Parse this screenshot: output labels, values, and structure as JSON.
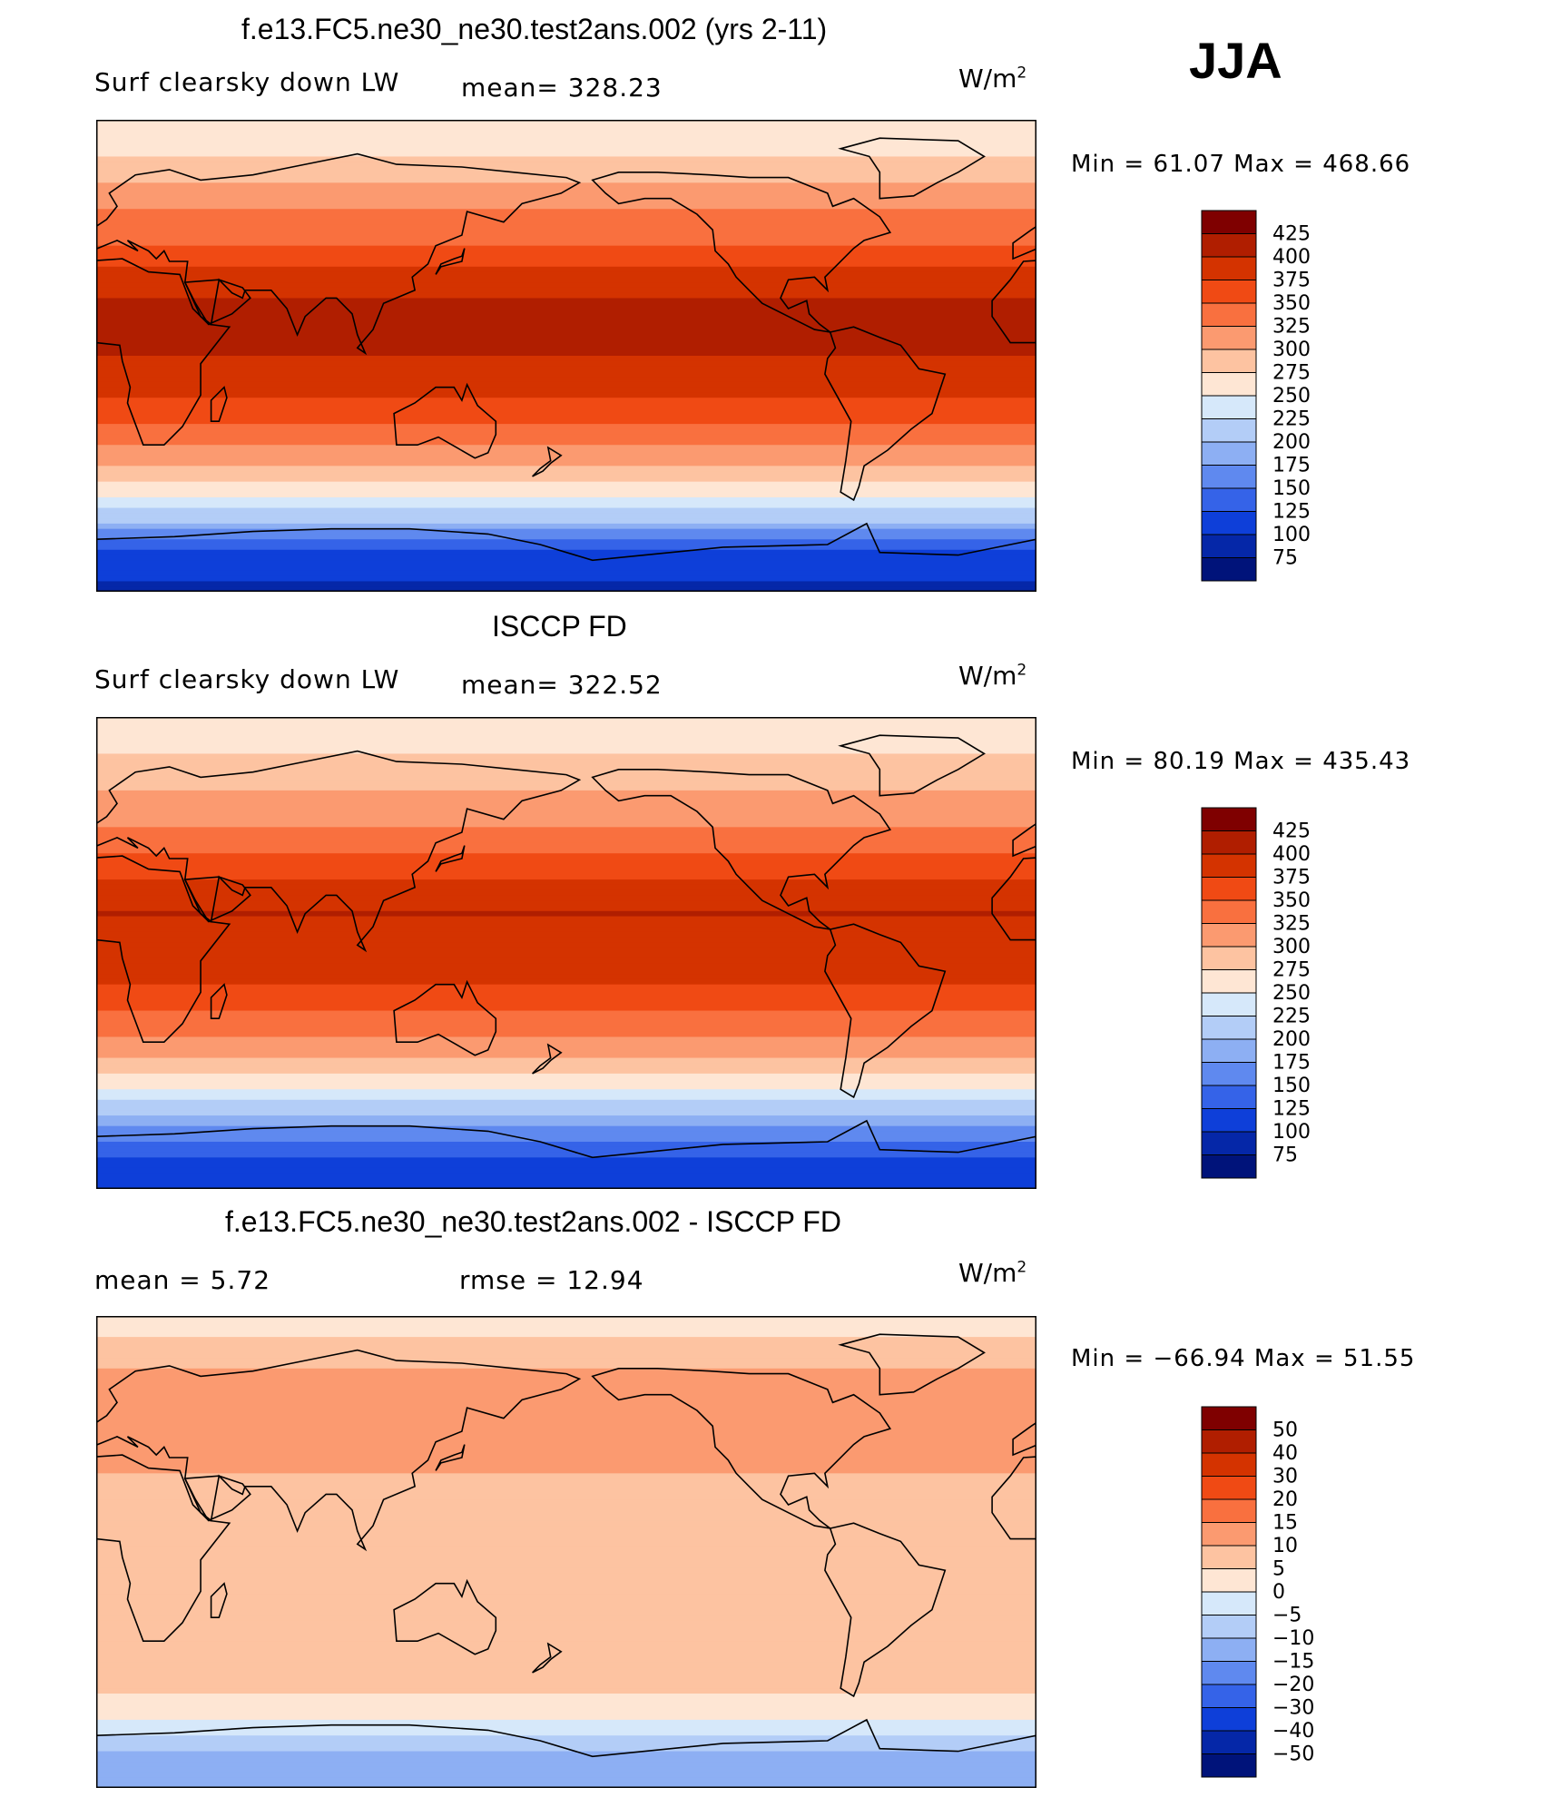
{
  "season": "JJA",
  "panels": [
    {
      "title": "f.e13.FC5.ne30_ne30.test2ans.002 (yrs 2-11)",
      "left_label": "Surf clearsky down LW",
      "center_label": "mean= 328.23",
      "units": "W/m",
      "units_sup": "2",
      "minmax": "Min =   61.07  Max  =  468.66",
      "colorbar_labels": [
        "425",
        "400",
        "375",
        "350",
        "325",
        "300",
        "275",
        "250",
        "225",
        "200",
        "175",
        "150",
        "125",
        "100",
        "75"
      ],
      "colorbar_colors": [
        "#7f0000",
        "#b01e00",
        "#d43300",
        "#f04a14",
        "#f9703f",
        "#fb9a70",
        "#fdc3a1",
        "#fee6d4",
        "#d6e8fa",
        "#b3cdf7",
        "#8daff3",
        "#5f89ef",
        "#3563e8",
        "#0e3fd9",
        "#0527a8",
        "#00137a"
      ]
    },
    {
      "title": "ISCCP FD",
      "left_label": "Surf clearsky down LW",
      "center_label": "mean= 322.52",
      "units": "W/m",
      "units_sup": "2",
      "minmax": "Min =   80.19  Max  =  435.43",
      "colorbar_labels": [
        "425",
        "400",
        "375",
        "350",
        "325",
        "300",
        "275",
        "250",
        "225",
        "200",
        "175",
        "150",
        "125",
        "100",
        "75"
      ],
      "colorbar_colors": [
        "#7f0000",
        "#b01e00",
        "#d43300",
        "#f04a14",
        "#f9703f",
        "#fb9a70",
        "#fdc3a1",
        "#fee6d4",
        "#d6e8fa",
        "#b3cdf7",
        "#8daff3",
        "#5f89ef",
        "#3563e8",
        "#0e3fd9",
        "#0527a8",
        "#00137a"
      ]
    },
    {
      "title": "f.e13.FC5.ne30_ne30.test2ans.002 - ISCCP FD",
      "left_label": "mean =    5.72",
      "center_label": "rmse =   12.94",
      "units": "W/m",
      "units_sup": "2",
      "minmax": "Min = −66.94  Max =   51.55",
      "colorbar_labels": [
        "50",
        "40",
        "30",
        "20",
        "15",
        "10",
        "5",
        "0",
        "−5",
        "−10",
        "−15",
        "−20",
        "−30",
        "−40",
        "−50"
      ],
      "colorbar_colors": [
        "#7f0000",
        "#b01e00",
        "#d43300",
        "#f04a14",
        "#f9703f",
        "#fb9a70",
        "#fdc3a1",
        "#fee6d4",
        "#d6e8fa",
        "#b3cdf7",
        "#8daff3",
        "#5f89ef",
        "#3563e8",
        "#0e3fd9",
        "#0527a8",
        "#00137a"
      ]
    }
  ],
  "chart_data": [
    {
      "type": "heatmap",
      "title": "f.e13.FC5.ne30_ne30.test2ans.002 (yrs 2-11)",
      "variable": "Surf clearsky down LW",
      "season": "JJA",
      "mean": 328.23,
      "min": 61.07,
      "max": 468.66,
      "units": "W/m2",
      "contour_levels": [
        75,
        100,
        125,
        150,
        175,
        200,
        225,
        250,
        275,
        300,
        325,
        350,
        375,
        400,
        425
      ],
      "zonal_profile": {
        "lat": [
          90,
          75,
          60,
          45,
          30,
          15,
          0,
          -15,
          -30,
          -45,
          -60,
          -75,
          -90
        ],
        "value": [
          250,
          275,
          320,
          340,
          390,
          410,
          400,
          380,
          340,
          290,
          220,
          120,
          90
        ]
      }
    },
    {
      "type": "heatmap",
      "title": "ISCCP FD",
      "variable": "Surf clearsky down LW",
      "season": "JJA",
      "mean": 322.52,
      "min": 80.19,
      "max": 435.43,
      "units": "W/m2",
      "contour_levels": [
        75,
        100,
        125,
        150,
        175,
        200,
        225,
        250,
        275,
        300,
        325,
        350,
        375,
        400,
        425
      ],
      "zonal_profile": {
        "lat": [
          90,
          75,
          60,
          45,
          30,
          15,
          0,
          -15,
          -30,
          -45,
          -60,
          -75,
          -90
        ],
        "value": [
          255,
          275,
          305,
          330,
          370,
          400,
          395,
          370,
          330,
          280,
          210,
          130,
          100
        ]
      }
    },
    {
      "type": "heatmap",
      "title": "f.e13.FC5.ne30_ne30.test2ans.002 - ISCCP FD",
      "variable": "Surf clearsky down LW",
      "season": "JJA",
      "mean": 5.72,
      "rmse": 12.94,
      "min": -66.94,
      "max": 51.55,
      "units": "W/m2",
      "contour_levels": [
        -50,
        -40,
        -30,
        -20,
        -15,
        -10,
        -5,
        0,
        5,
        10,
        15,
        20,
        30,
        40,
        50
      ],
      "zonal_profile": {
        "lat": [
          90,
          75,
          60,
          45,
          30,
          15,
          0,
          -15,
          -30,
          -45,
          -60,
          -75,
          -90
        ],
        "value": [
          2,
          8,
          15,
          12,
          10,
          8,
          5,
          8,
          10,
          8,
          3,
          -10,
          -12
        ]
      }
    }
  ]
}
